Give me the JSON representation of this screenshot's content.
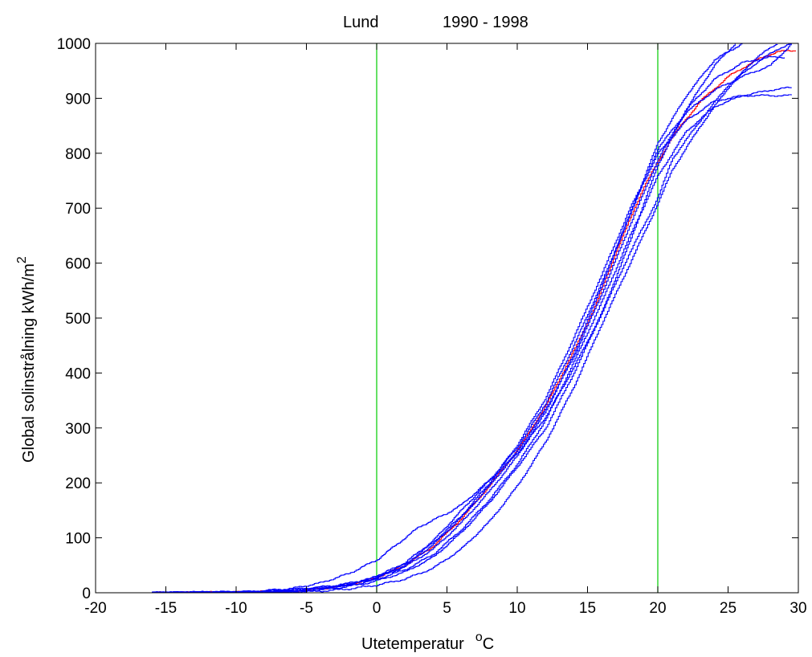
{
  "chart_data": {
    "type": "line",
    "title_left": "Lund",
    "title_right": "1990 - 1998",
    "xlabel": {
      "main": "Utetemperatur",
      "sup": "o",
      "unit": "C"
    },
    "ylabel": {
      "main": "Global solinstrålning  kWh/m",
      "sup": "2"
    },
    "xlim": [
      -20,
      30
    ],
    "ylim": [
      0,
      1000
    ],
    "xticks": [
      -20,
      -15,
      -10,
      -5,
      0,
      5,
      10,
      15,
      20,
      25,
      30
    ],
    "yticks": [
      0,
      100,
      200,
      300,
      400,
      500,
      600,
      700,
      800,
      900,
      1000
    ],
    "grid": false,
    "vlines": [
      {
        "x": 0,
        "color": "#00cc00"
      },
      {
        "x": 20,
        "color": "#00cc00"
      }
    ],
    "colors": {
      "years": "#0000ff",
      "mean": "#ff0000",
      "axes": "#000000"
    },
    "series": [
      {
        "color": "#ff0000",
        "points": [
          [
            -16,
            0
          ],
          [
            -10,
            1
          ],
          [
            -6,
            3
          ],
          [
            -4,
            7
          ],
          [
            -2,
            14
          ],
          [
            0,
            28
          ],
          [
            2,
            50
          ],
          [
            4,
            85
          ],
          [
            6,
            135
          ],
          [
            8,
            195
          ],
          [
            10,
            260
          ],
          [
            12,
            340
          ],
          [
            14,
            440
          ],
          [
            15.5,
            520
          ],
          [
            17,
            620
          ],
          [
            19,
            740
          ],
          [
            21,
            830
          ],
          [
            23,
            895
          ],
          [
            25,
            940
          ],
          [
            27,
            970
          ],
          [
            28.5,
            985
          ],
          [
            29.8,
            987
          ]
        ]
      },
      {
        "color": "#0000ff",
        "points": [
          [
            -16,
            0
          ],
          [
            -9,
            2
          ],
          [
            -6,
            8
          ],
          [
            -4,
            18
          ],
          [
            -2,
            35
          ],
          [
            0,
            60
          ],
          [
            1.5,
            90
          ],
          [
            3,
            120
          ],
          [
            5,
            145
          ],
          [
            6,
            160
          ],
          [
            8,
            205
          ],
          [
            10,
            255
          ],
          [
            12,
            320
          ],
          [
            14,
            410
          ],
          [
            16,
            510
          ],
          [
            18,
            640
          ],
          [
            20,
            780
          ],
          [
            22,
            880
          ],
          [
            24,
            960
          ],
          [
            25.5,
            1000
          ]
        ]
      },
      {
        "color": "#0000ff",
        "points": [
          [
            -16,
            0
          ],
          [
            -10,
            1
          ],
          [
            -6,
            5
          ],
          [
            -3,
            12
          ],
          [
            -1,
            22
          ],
          [
            0,
            30
          ],
          [
            2,
            55
          ],
          [
            4,
            95
          ],
          [
            6,
            150
          ],
          [
            8,
            205
          ],
          [
            10,
            265
          ],
          [
            12,
            345
          ],
          [
            14,
            450
          ],
          [
            16,
            565
          ],
          [
            18,
            690
          ],
          [
            20,
            820
          ],
          [
            22,
            905
          ],
          [
            24,
            970
          ],
          [
            26,
            1000
          ]
        ]
      },
      {
        "color": "#0000ff",
        "points": [
          [
            -16,
            0
          ],
          [
            -8,
            1
          ],
          [
            -5,
            3
          ],
          [
            -3,
            8
          ],
          [
            -1,
            16
          ],
          [
            0,
            22
          ],
          [
            2,
            38
          ],
          [
            4,
            65
          ],
          [
            6,
            110
          ],
          [
            8,
            165
          ],
          [
            10,
            230
          ],
          [
            12,
            300
          ],
          [
            14,
            400
          ],
          [
            16,
            510
          ],
          [
            18,
            620
          ],
          [
            20,
            720
          ],
          [
            21,
            790
          ],
          [
            23,
            860
          ],
          [
            25,
            925
          ],
          [
            27,
            965
          ],
          [
            28.5,
            990
          ],
          [
            29.5,
            1000
          ]
        ]
      },
      {
        "color": "#0000ff",
        "points": [
          [
            -16,
            0
          ],
          [
            -9,
            2
          ],
          [
            -6,
            6
          ],
          [
            -3,
            13
          ],
          [
            -1,
            22
          ],
          [
            0,
            30
          ],
          [
            2,
            52
          ],
          [
            4,
            92
          ],
          [
            6,
            140
          ],
          [
            8,
            200
          ],
          [
            10,
            270
          ],
          [
            12,
            355
          ],
          [
            14,
            465
          ],
          [
            16,
            580
          ],
          [
            18,
            700
          ],
          [
            20,
            800
          ],
          [
            22,
            860
          ],
          [
            24,
            895
          ],
          [
            26,
            905
          ],
          [
            29.5,
            905
          ]
        ]
      },
      {
        "color": "#0000ff",
        "points": [
          [
            -16,
            0
          ],
          [
            -8,
            1
          ],
          [
            -5,
            4
          ],
          [
            -3,
            10
          ],
          [
            -1,
            18
          ],
          [
            0,
            25
          ],
          [
            2,
            42
          ],
          [
            4,
            70
          ],
          [
            6,
            115
          ],
          [
            8,
            170
          ],
          [
            10,
            235
          ],
          [
            12,
            315
          ],
          [
            14,
            420
          ],
          [
            16,
            530
          ],
          [
            18,
            650
          ],
          [
            20,
            760
          ],
          [
            22,
            840
          ],
          [
            24,
            885
          ],
          [
            26,
            905
          ],
          [
            28,
            915
          ],
          [
            29.5,
            920
          ]
        ]
      },
      {
        "color": "#0000ff",
        "points": [
          [
            -16,
            0
          ],
          [
            -7,
            1
          ],
          [
            -4,
            3
          ],
          [
            -2,
            7
          ],
          [
            0,
            14
          ],
          [
            2,
            25
          ],
          [
            4,
            45
          ],
          [
            6,
            80
          ],
          [
            8,
            130
          ],
          [
            10,
            195
          ],
          [
            12,
            275
          ],
          [
            14,
            375
          ],
          [
            16,
            490
          ],
          [
            18,
            600
          ],
          [
            20,
            710
          ],
          [
            21,
            770
          ],
          [
            23,
            850
          ],
          [
            25,
            920
          ],
          [
            27,
            975
          ],
          [
            28.5,
            1000
          ]
        ]
      },
      {
        "color": "#0000ff",
        "points": [
          [
            -16,
            0
          ],
          [
            -9,
            1
          ],
          [
            -6,
            4
          ],
          [
            -3,
            10
          ],
          [
            -1,
            20
          ],
          [
            0,
            28
          ],
          [
            2,
            50
          ],
          [
            4,
            88
          ],
          [
            6,
            138
          ],
          [
            8,
            195
          ],
          [
            10,
            258
          ],
          [
            12,
            335
          ],
          [
            14,
            430
          ],
          [
            16,
            545
          ],
          [
            18,
            670
          ],
          [
            20,
            790
          ],
          [
            22,
            880
          ],
          [
            24,
            935
          ],
          [
            26,
            965
          ],
          [
            28,
            975
          ],
          [
            29,
            975
          ]
        ]
      },
      {
        "color": "#0000ff",
        "points": [
          [
            -16,
            0
          ],
          [
            -8,
            1
          ],
          [
            -5,
            5
          ],
          [
            -3,
            11
          ],
          [
            -1,
            20
          ],
          [
            0,
            27
          ],
          [
            2,
            48
          ],
          [
            4,
            80
          ],
          [
            6,
            128
          ],
          [
            8,
            185
          ],
          [
            10,
            250
          ],
          [
            12,
            330
          ],
          [
            14,
            435
          ],
          [
            16,
            560
          ],
          [
            18,
            690
          ],
          [
            20,
            810
          ],
          [
            22,
            875
          ],
          [
            24,
            915
          ],
          [
            26,
            940
          ],
          [
            28,
            960
          ],
          [
            29.5,
            1000
          ]
        ]
      }
    ]
  }
}
